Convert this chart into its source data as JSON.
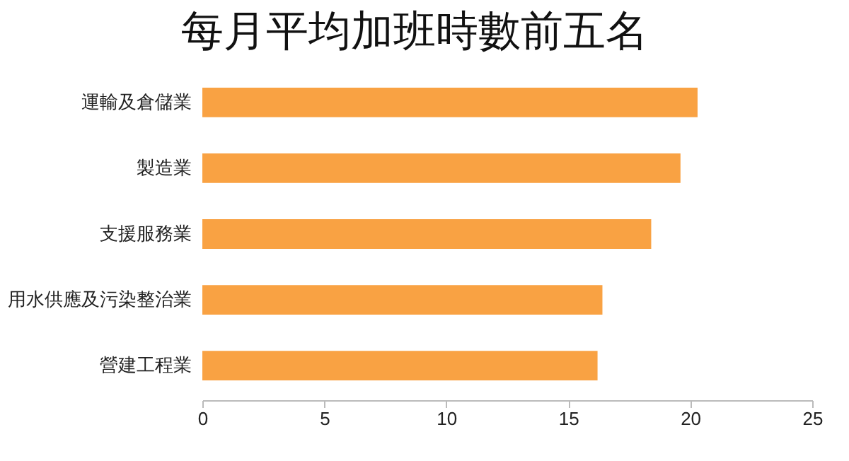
{
  "chart_data": {
    "type": "bar",
    "orientation": "horizontal",
    "title": "每月平均加班時數前五名",
    "categories": [
      "運輸及倉儲業",
      "製造業",
      "支援服務業",
      "用水供應及污染整治業",
      "營建工程業"
    ],
    "values": [
      20.3,
      19.6,
      18.4,
      16.4,
      16.2
    ],
    "color": "#f9a243",
    "xlim": [
      0,
      25
    ],
    "xticks": [
      0,
      5,
      10,
      15,
      20,
      25
    ],
    "grid": false
  }
}
